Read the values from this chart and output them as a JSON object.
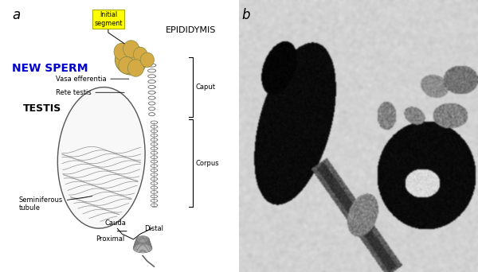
{
  "fig_width": 6.0,
  "fig_height": 3.42,
  "dpi": 100,
  "bg_color": "#ffffff",
  "panel_a_label": "a",
  "panel_b_label": "b",
  "label_fontsize": 12,
  "new_sperm_text": "NEW SPERM",
  "new_sperm_color": "#0000cc",
  "new_sperm_fontsize": 10,
  "new_sperm_fontweight": "bold",
  "testis_text": "TESTIS",
  "testis_fontsize": 9,
  "testis_fontweight": "bold",
  "epididymis_text": "EPIDIDYMIS",
  "epididymis_fontsize": 8,
  "caput_text": "Caput",
  "corpus_text": "Corpus",
  "cauda_text": "Cauda",
  "proximal_text": "Proximal",
  "distal_text": "Distal",
  "initial_segment_text": "Initial\nsegment",
  "initial_segment_bg": "#ffff00",
  "vasa_text": "Vasa efferentia",
  "rete_text": "Rete testis",
  "seminiferous_text": "Seminiferous\ntubule",
  "annotation_fontsize": 6,
  "bracket_color": "#000000",
  "testis_outline_color": "#555555",
  "testis_fill_color": "#f8f8f8",
  "epi_fill": "#d4aa44",
  "epi_edge": "#888844"
}
